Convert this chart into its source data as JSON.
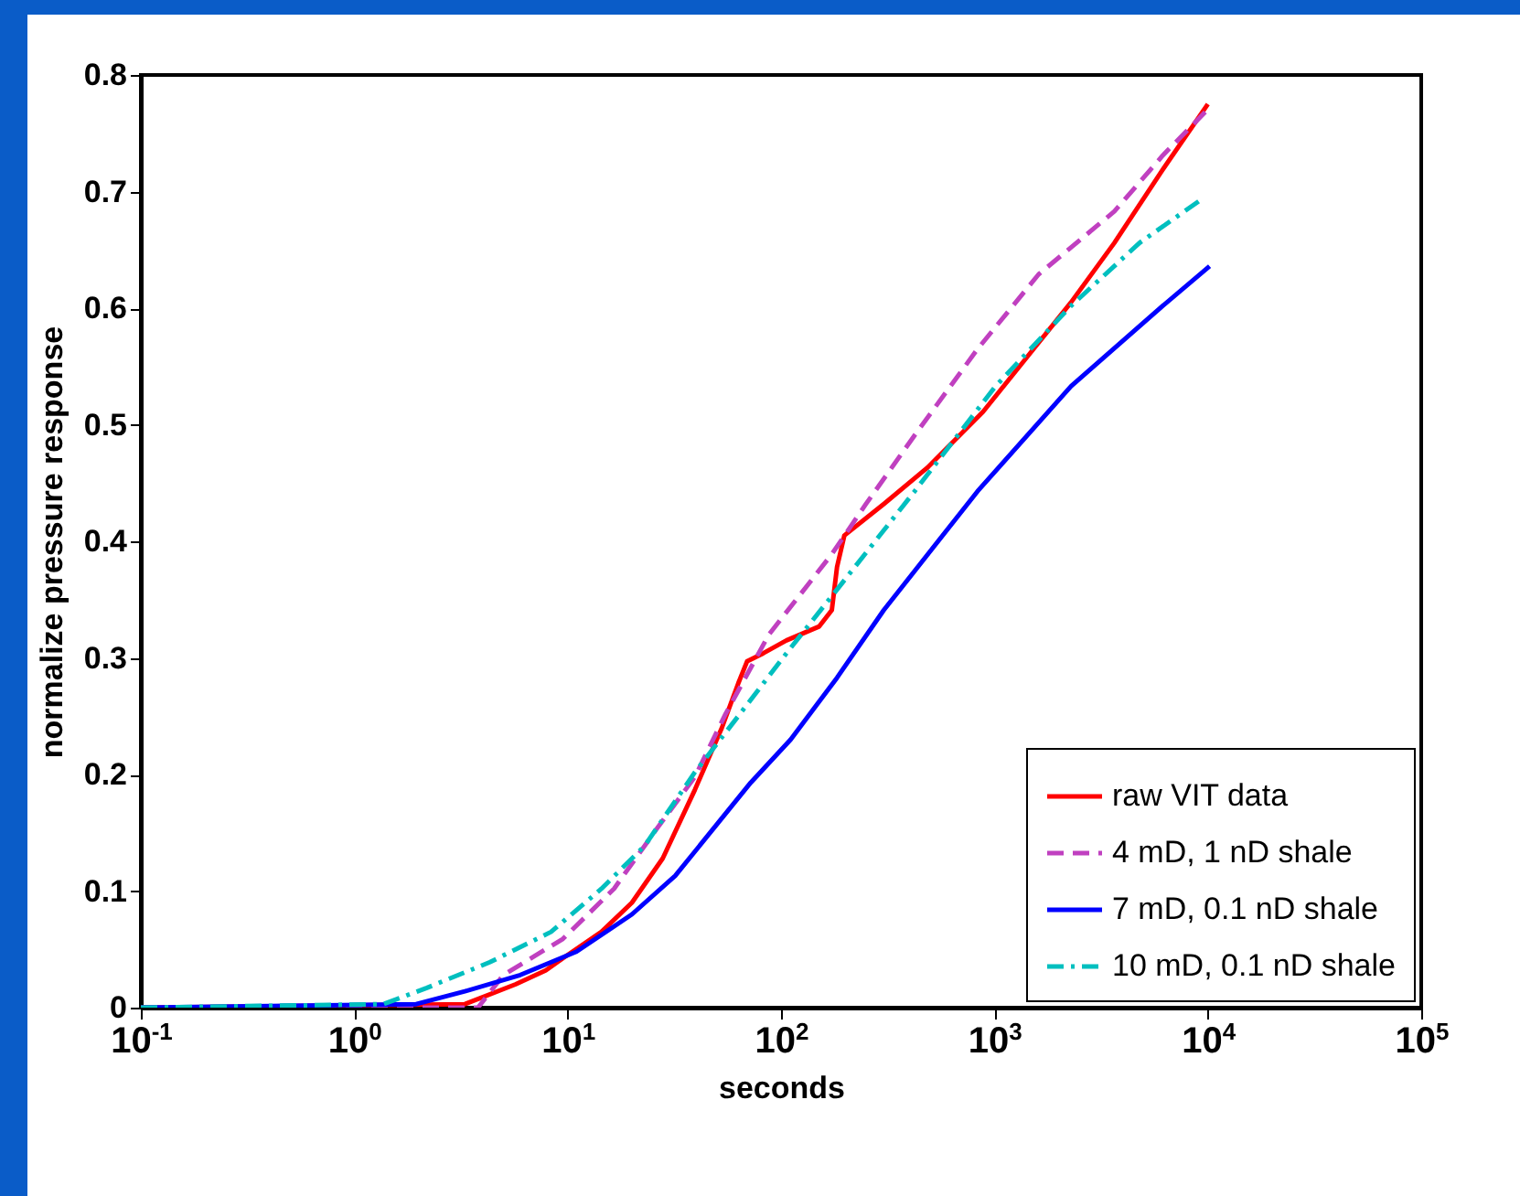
{
  "chart_data": {
    "type": "line",
    "xlabel": "seconds",
    "ylabel": "normalize pressure response",
    "log": "x",
    "xlim": [
      0.1,
      100000
    ],
    "ylim": [
      0,
      0.8
    ],
    "xticks": [
      {
        "value": 0.1,
        "label": "10$^{-1}$"
      },
      {
        "value": 1,
        "label": "10$^{0}$"
      },
      {
        "value": 10,
        "label": "10$^{1}$"
      },
      {
        "value": 100,
        "label": "10$^{2}$"
      },
      {
        "value": 1000,
        "label": "10$^{3}$"
      },
      {
        "value": 10000,
        "label": "10$^{4}$"
      },
      {
        "value": 100000,
        "label": "10$^{5}$"
      }
    ],
    "yticks": [
      0,
      0.1,
      0.2,
      0.3,
      0.4,
      0.5,
      0.6,
      0.7,
      0.8
    ],
    "grid": false,
    "legend": "bottom right",
    "marker": "none",
    "series": [
      {
        "name": "raw VIT data",
        "color": "#ff0000",
        "line_style": "solid",
        "x": [
          0.1,
          3.3,
          5.7,
          7.9,
          9.6,
          14.4,
          20,
          27.9,
          39.5,
          52.8,
          63,
          69.3,
          82.6,
          106,
          151,
          173,
          183,
          198,
          303,
          484,
          883,
          1436,
          2286,
          3648,
          6152,
          10000
        ],
        "values": [
          0,
          0.003,
          0.02,
          0.032,
          0.043,
          0.065,
          0.09,
          0.128,
          0.187,
          0.24,
          0.278,
          0.297,
          0.304,
          0.315,
          0.327,
          0.341,
          0.378,
          0.405,
          0.432,
          0.463,
          0.511,
          0.559,
          0.605,
          0.656,
          0.719,
          0.775
        ]
      },
      {
        "name": "4 mD, 1 nD shale",
        "color": "#c040c0",
        "line_style": "dashed",
        "x": [
          0.1,
          3.8,
          5,
          9.5,
          16.5,
          26.3,
          39.5,
          55,
          87.7,
          173,
          250,
          423,
          834,
          1611,
          3648,
          6152,
          10190
        ],
        "values": [
          0,
          0,
          0.028,
          0.059,
          0.102,
          0.154,
          0.198,
          0.252,
          0.32,
          0.389,
          0.432,
          0.491,
          0.565,
          0.629,
          0.683,
          0.731,
          0.772
        ]
      },
      {
        "name": "7 mD, 0.1 nD shale",
        "color": "#0000ff",
        "line_style": "solid",
        "x": [
          0.1,
          1.95,
          3.3,
          6,
          11,
          20,
          31.9,
          72.1,
          111,
          183,
          303,
          834,
          2286,
          6152,
          10190
        ],
        "values": [
          0,
          0.003,
          0.014,
          0.028,
          0.048,
          0.08,
          0.113,
          0.193,
          0.23,
          0.283,
          0.341,
          0.443,
          0.533,
          0.602,
          0.636
        ]
      },
      {
        "name": "10 mD, 0.1 nD shale",
        "color": "#00bfbf",
        "line_style": "dashdot",
        "x": [
          0.1,
          1.37,
          2.19,
          4.32,
          8.36,
          14.4,
          23,
          39.5,
          63,
          106,
          180,
          423,
          1012,
          2286,
          4786,
          9616
        ],
        "values": [
          0,
          0.003,
          0.017,
          0.039,
          0.065,
          0.102,
          0.139,
          0.202,
          0.25,
          0.304,
          0.357,
          0.443,
          0.533,
          0.602,
          0.656,
          0.695
        ]
      }
    ]
  }
}
